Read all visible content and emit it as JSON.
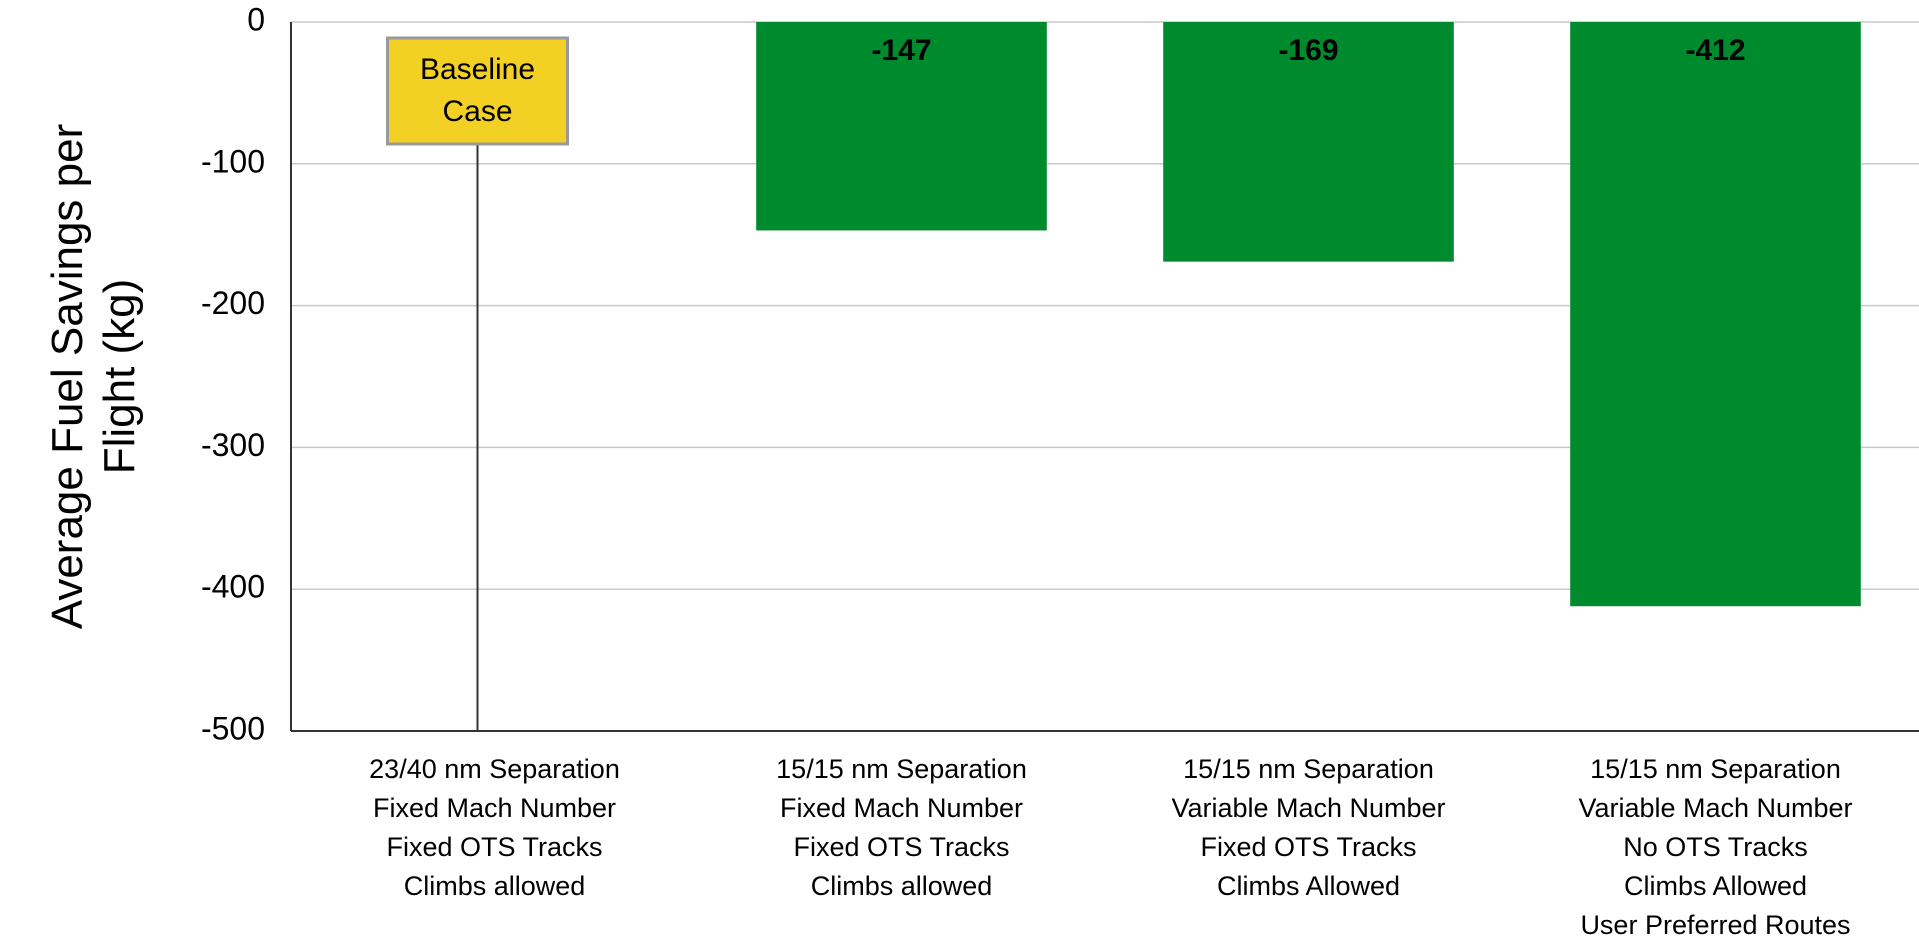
{
  "chart_data": {
    "type": "bar",
    "ylabel": [
      "Average Fuel Savings per",
      "Flight (kg)"
    ],
    "categories": [
      [
        "23/40 nm Separation",
        "Fixed Mach Number",
        "Fixed OTS Tracks",
        "Climbs allowed"
      ],
      [
        "15/15 nm Separation",
        "Fixed Mach Number",
        "Fixed OTS Tracks",
        "Climbs allowed"
      ],
      [
        "15/15 nm Separation",
        "Variable Mach Number",
        "Fixed OTS Tracks",
        "Climbs Allowed"
      ],
      [
        "15/15 nm Separation",
        "Variable Mach Number",
        "No OTS Tracks",
        "Climbs Allowed",
        "User Preferred Routes"
      ]
    ],
    "values": [
      0,
      -147,
      -169,
      -412
    ],
    "color": "#008a2e",
    "annotations": [
      {
        "text": [
          "Baseline",
          "Case"
        ],
        "category": 0,
        "color": "#f2d024"
      }
    ],
    "ylim": [
      -500,
      0
    ],
    "yticks": [
      0,
      -100,
      -200,
      -300,
      -400,
      -500
    ],
    "grid": true
  }
}
